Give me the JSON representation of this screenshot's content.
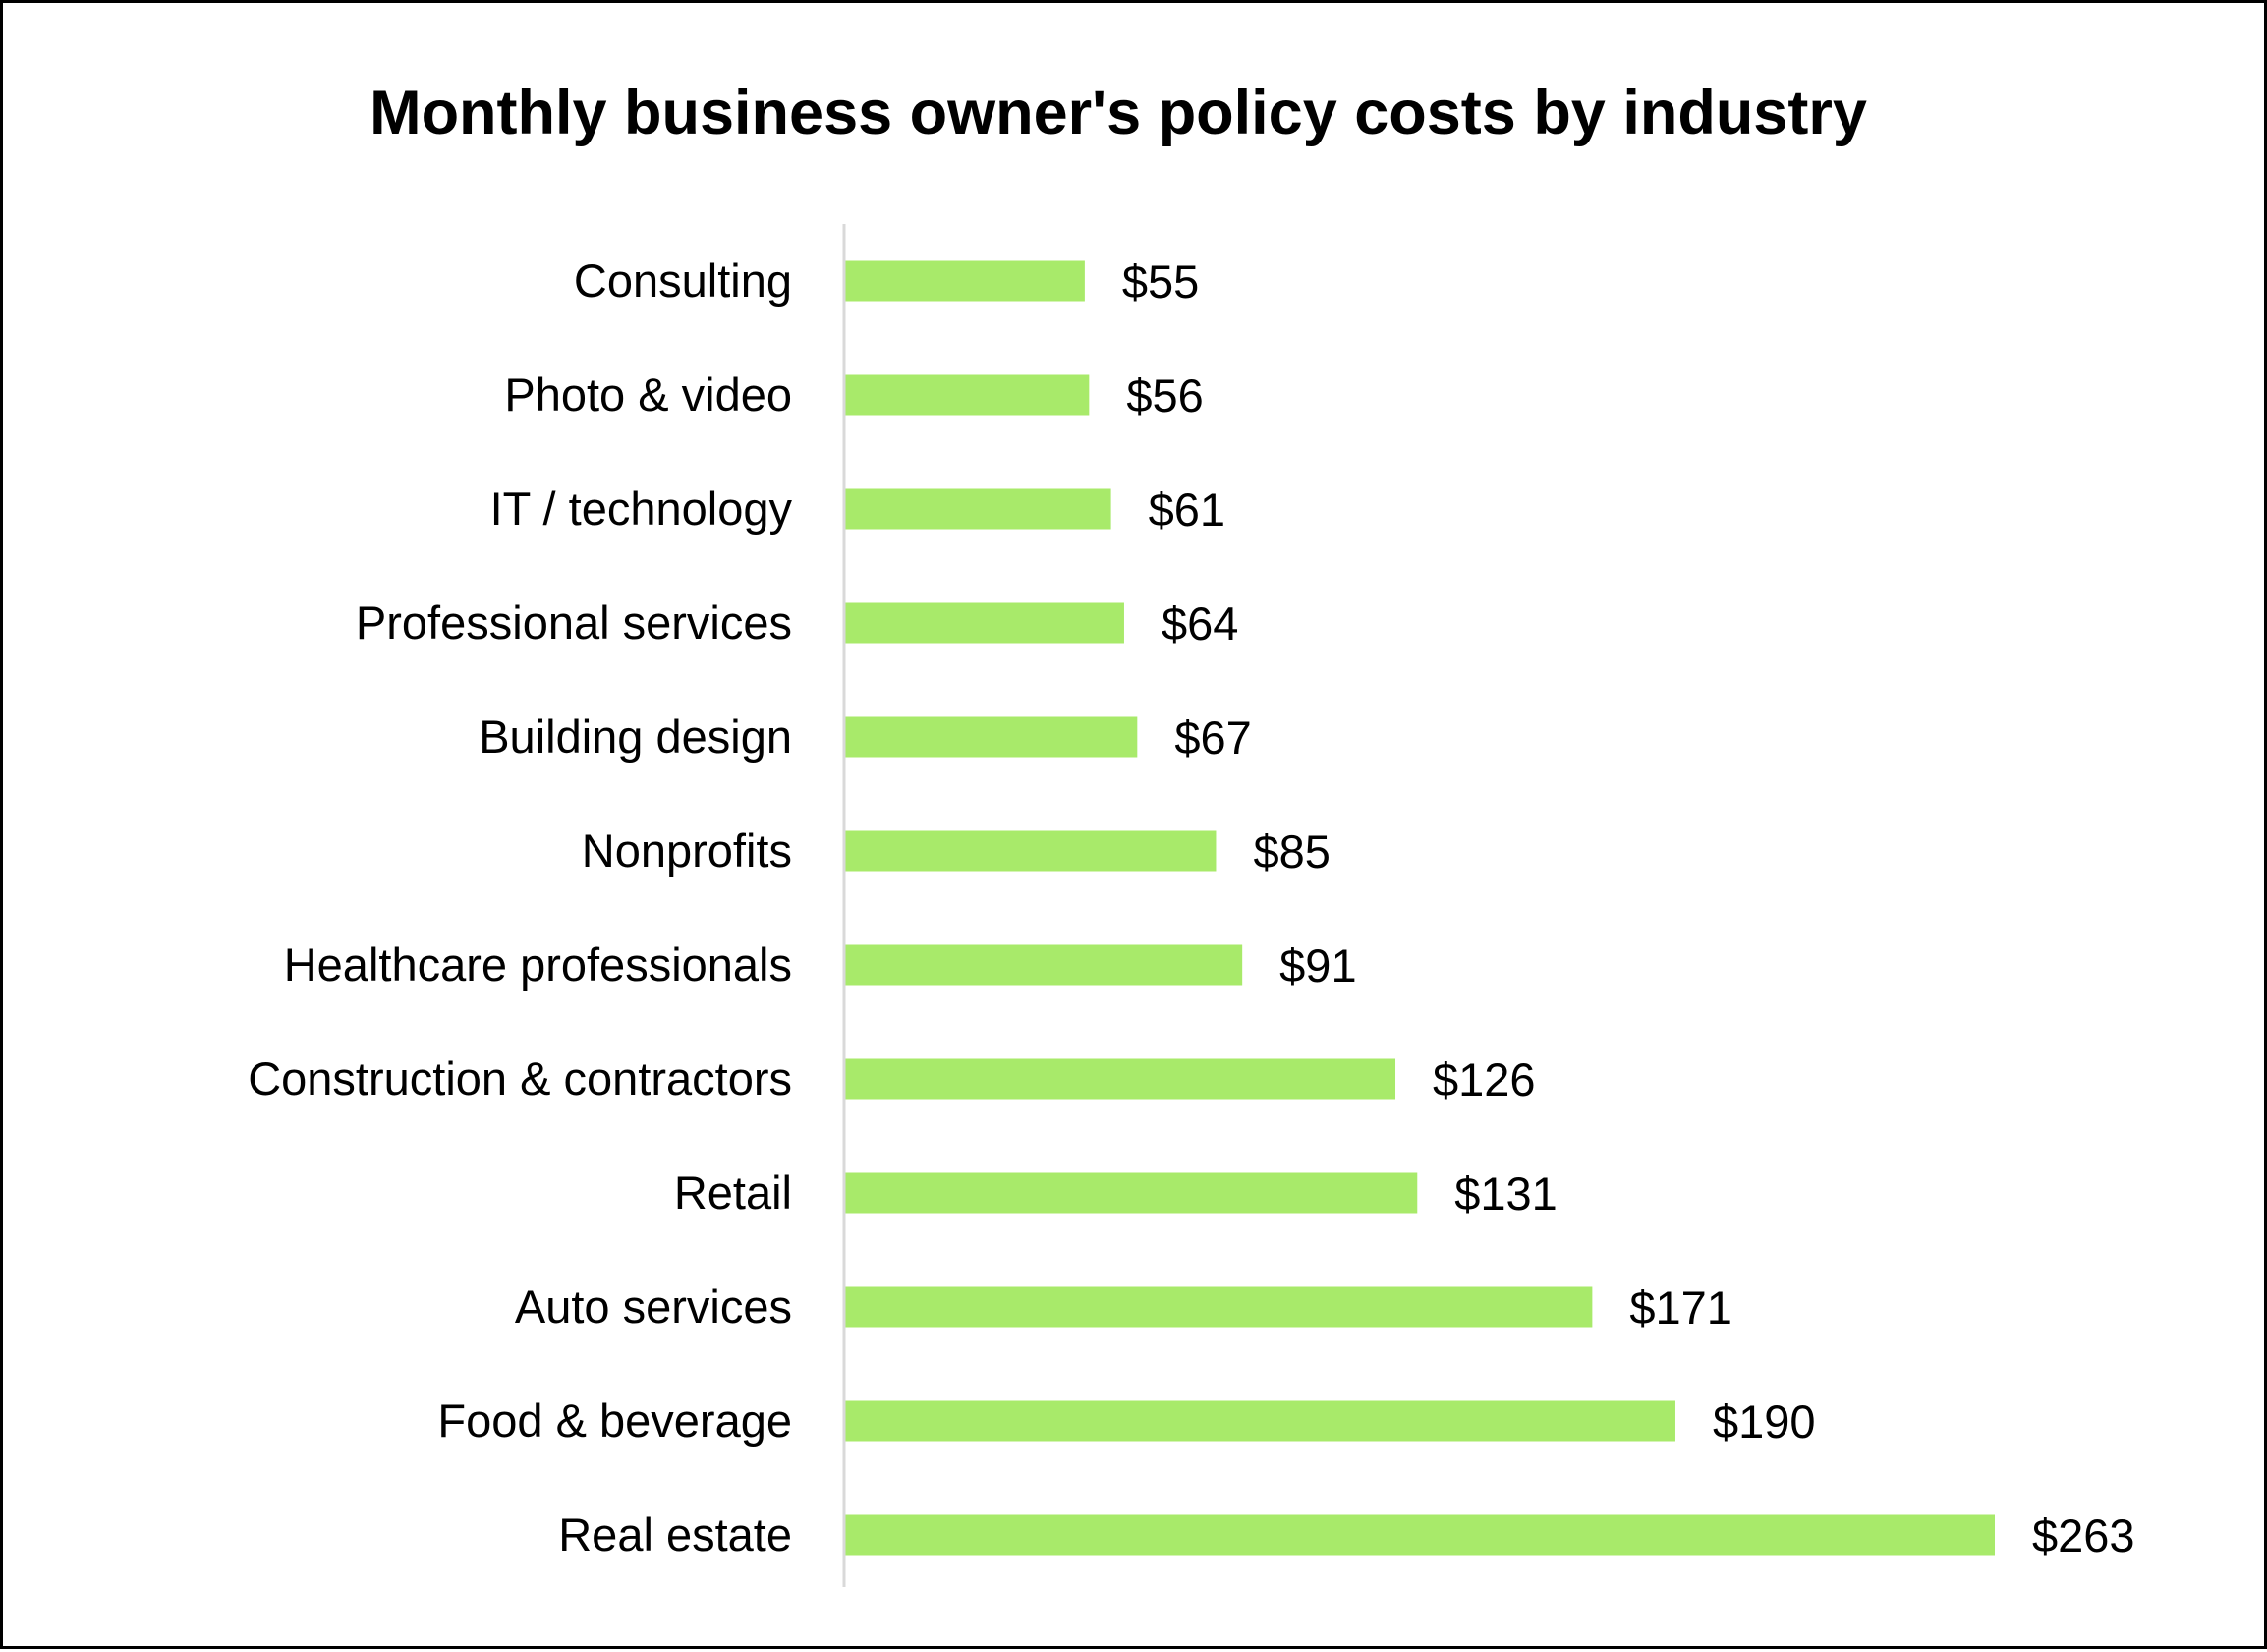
{
  "chart_data": {
    "type": "bar",
    "orientation": "horizontal",
    "title": "Monthly business owner's policy costs by industry",
    "xlabel": "",
    "ylabel": "",
    "categories": [
      "Consulting",
      "Photo & video",
      "IT / technology",
      "Professional services",
      "Building design",
      "Nonprofits",
      "Healthcare professionals",
      "Construction & contractors",
      "Retail",
      "Auto services",
      "Food & beverage",
      "Real estate"
    ],
    "values": [
      55,
      56,
      61,
      64,
      67,
      85,
      91,
      126,
      131,
      171,
      190,
      263
    ],
    "data_labels": [
      "$55",
      "$56",
      "$61",
      "$64",
      "$67",
      "$85",
      "$91",
      "$126",
      "$131",
      "$171",
      "$190",
      "$263"
    ],
    "xlim": [
      0,
      263
    ],
    "grid": false,
    "legend": "none",
    "colors": {
      "bar": "#A8EA6A",
      "axis": "#D9D9D9",
      "text": "#000000",
      "border": "#000000"
    }
  }
}
